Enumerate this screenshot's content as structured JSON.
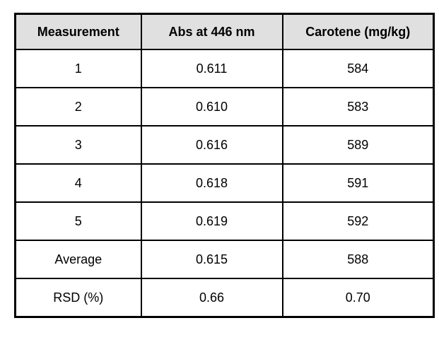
{
  "table": {
    "headers": [
      "Measurement",
      "Abs at 446 nm",
      "Carotene (mg/kg)"
    ],
    "rows": [
      [
        "1",
        "0.611",
        "584"
      ],
      [
        "2",
        "0.610",
        "583"
      ],
      [
        "3",
        "0.616",
        "589"
      ],
      [
        "4",
        "0.618",
        "591"
      ],
      [
        "5",
        "0.619",
        "592"
      ],
      [
        "Average",
        "0.615",
        "588"
      ],
      [
        "RSD (%)",
        "0.66",
        "0.70"
      ]
    ]
  },
  "chart_data": {
    "type": "table",
    "title": "",
    "columns": [
      "Measurement",
      "Abs at 446 nm",
      "Carotene (mg/kg)"
    ],
    "measurements": [
      1,
      2,
      3,
      4,
      5
    ],
    "abs_at_446_nm": [
      0.611,
      0.61,
      0.616,
      0.618,
      0.619
    ],
    "carotene_mg_kg": [
      584,
      583,
      589,
      591,
      592
    ],
    "average": {
      "abs_at_446_nm": 0.615,
      "carotene_mg_kg": 588
    },
    "rsd_percent": {
      "abs_at_446_nm": 0.66,
      "carotene_mg_kg": 0.7
    }
  },
  "colors": {
    "header_bg": "#e0e0e0",
    "border": "#000000",
    "text": "#000000",
    "page_bg": "#ffffff"
  }
}
